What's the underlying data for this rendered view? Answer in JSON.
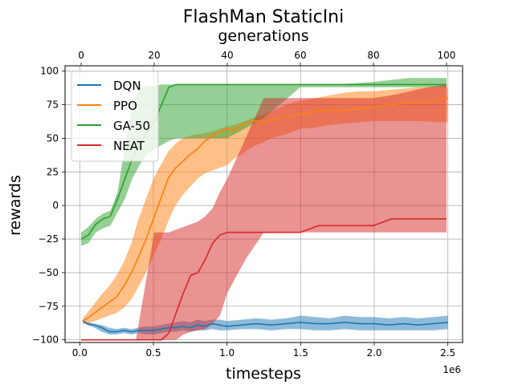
{
  "chart_data": {
    "type": "line",
    "title": "FlashMan StaticIni",
    "xlabel": "timesteps",
    "ylabel": "rewards",
    "x_top_label": "generations",
    "x_offset_label": "1e6",
    "xlim": [
      -0.1,
      2.6
    ],
    "ylim": [
      -102,
      104
    ],
    "x_top_lim": [
      -4.4,
      104.4
    ],
    "x_ticks": [
      0.0,
      0.5,
      1.0,
      1.5,
      2.0,
      2.5
    ],
    "x_tick_labels": [
      "0.0",
      "0.5",
      "1.0",
      "1.5",
      "2.0",
      "2.5"
    ],
    "x_top_ticks": [
      0,
      20,
      40,
      60,
      80,
      100
    ],
    "x_top_tick_labels": [
      "0",
      "20",
      "40",
      "60",
      "80",
      "100"
    ],
    "y_ticks": [
      -100,
      -75,
      -50,
      -25,
      0,
      25,
      50,
      75,
      100
    ],
    "y_tick_labels": [
      "−100",
      "−75",
      "−50",
      "−25",
      "0",
      "25",
      "50",
      "75",
      "100"
    ],
    "grid": true,
    "legend_position": "top-left",
    "series": [
      {
        "name": "DQN",
        "color": "#1f77b4",
        "band_alpha": 0.5,
        "axis": "bottom",
        "x": [
          0.02,
          0.05,
          0.1,
          0.15,
          0.2,
          0.25,
          0.3,
          0.35,
          0.4,
          0.45,
          0.5,
          0.55,
          0.6,
          0.65,
          0.7,
          0.75,
          0.8,
          0.85,
          0.9,
          0.95,
          1.0,
          1.1,
          1.2,
          1.3,
          1.4,
          1.5,
          1.6,
          1.7,
          1.8,
          1.9,
          2.0,
          2.1,
          2.2,
          2.3,
          2.4,
          2.5
        ],
        "y": [
          -86,
          -88,
          -89,
          -91,
          -94,
          -94,
          -93,
          -94,
          -93,
          -93,
          -93,
          -92,
          -91,
          -91,
          -90,
          -91,
          -89,
          -90,
          -88,
          -89,
          -90,
          -89,
          -88,
          -89,
          -88,
          -87,
          -88,
          -88,
          -87,
          -88,
          -88,
          -89,
          -88,
          -89,
          -88,
          -87
        ],
        "lower": [
          -87,
          -89,
          -91,
          -94,
          -96,
          -96,
          -95,
          -96,
          -95,
          -96,
          -96,
          -95,
          -94,
          -94,
          -93,
          -94,
          -93,
          -93,
          -92,
          -93,
          -93,
          -92,
          -92,
          -93,
          -92,
          -92,
          -93,
          -93,
          -92,
          -93,
          -93,
          -93,
          -93,
          -93,
          -93,
          -92
        ],
        "upper": [
          -85,
          -87,
          -88,
          -89,
          -91,
          -92,
          -91,
          -92,
          -91,
          -90,
          -90,
          -89,
          -88,
          -87,
          -86,
          -87,
          -85,
          -86,
          -85,
          -85,
          -86,
          -85,
          -84,
          -85,
          -84,
          -82,
          -83,
          -84,
          -82,
          -83,
          -83,
          -84,
          -83,
          -84,
          -83,
          -82
        ]
      },
      {
        "name": "PPO",
        "color": "#ff7f0e",
        "band_alpha": 0.5,
        "axis": "bottom",
        "x": [
          0.02,
          0.05,
          0.1,
          0.15,
          0.2,
          0.25,
          0.3,
          0.35,
          0.4,
          0.45,
          0.5,
          0.55,
          0.6,
          0.65,
          0.7,
          0.75,
          0.8,
          0.85,
          0.9,
          0.95,
          1.0,
          1.05,
          1.1,
          1.15,
          1.2,
          1.25,
          1.3,
          1.4,
          1.5,
          1.6,
          1.7,
          1.8,
          1.9,
          2.0,
          2.1,
          2.2,
          2.3,
          2.4,
          2.5
        ],
        "y": [
          -86,
          -84,
          -80,
          -76,
          -72,
          -68,
          -60,
          -50,
          -38,
          -25,
          -10,
          5,
          20,
          28,
          33,
          38,
          42,
          48,
          52,
          55,
          57,
          56,
          60,
          62,
          63,
          62,
          64,
          66,
          68,
          70,
          71,
          71,
          72,
          73,
          75,
          76,
          77,
          78,
          80
        ],
        "lower": [
          -88,
          -88,
          -86,
          -84,
          -82,
          -80,
          -76,
          -70,
          -60,
          -50,
          -38,
          -26,
          -12,
          0,
          8,
          14,
          20,
          24,
          26,
          28,
          30,
          35,
          38,
          42,
          45,
          47,
          50,
          53,
          57,
          58,
          60,
          61,
          62,
          63,
          63,
          63,
          63,
          62,
          62
        ],
        "upper": [
          -84,
          -80,
          -73,
          -66,
          -60,
          -52,
          -42,
          -28,
          -10,
          5,
          20,
          30,
          40,
          46,
          50,
          52,
          53,
          54,
          55,
          57,
          59,
          60,
          62,
          64,
          66,
          68,
          70,
          75,
          78,
          80,
          82,
          84,
          85,
          85,
          86,
          87,
          88,
          88,
          88
        ]
      },
      {
        "name": "GA-50",
        "color": "#2ca02c",
        "band_alpha": 0.5,
        "axis": "top",
        "x": [
          0,
          2,
          4,
          6,
          8,
          10,
          12,
          14,
          16,
          18,
          20,
          22,
          24,
          26,
          28,
          30,
          40,
          50,
          60,
          70,
          80,
          90,
          100
        ],
        "y": [
          -25,
          -22,
          -14,
          -10,
          -8,
          5,
          20,
          35,
          45,
          55,
          62,
          75,
          88,
          90,
          90,
          90,
          90,
          90,
          90,
          90,
          90,
          90,
          90
        ],
        "lower": [
          -30,
          -28,
          -20,
          -17,
          -15,
          -5,
          5,
          20,
          30,
          38,
          42,
          45,
          48,
          50,
          50,
          50,
          50,
          65,
          88,
          88,
          88,
          88,
          88
        ],
        "upper": [
          -20,
          -16,
          -10,
          -6,
          -4,
          10,
          45,
          75,
          88,
          89,
          89,
          90,
          90,
          90,
          90,
          90,
          90,
          90,
          90,
          90,
          92,
          95,
          95
        ]
      },
      {
        "name": "NEAT",
        "color": "#d62728",
        "band_alpha": 0.5,
        "axis": "top",
        "x": [
          0,
          5,
          10,
          15,
          20,
          22,
          24,
          26,
          28,
          30,
          32,
          34,
          36,
          38,
          40,
          45,
          50,
          55,
          60,
          65,
          70,
          75,
          80,
          85,
          90,
          95,
          100
        ],
        "y": [
          -100,
          -100,
          -100,
          -100,
          -100,
          -100,
          -95,
          -80,
          -65,
          -52,
          -50,
          -40,
          -28,
          -22,
          -20,
          -20,
          -20,
          -20,
          -20,
          -15,
          -15,
          -15,
          -15,
          -10,
          -10,
          -10,
          -10
        ],
        "lower": [
          -100,
          -100,
          -100,
          -100,
          -100,
          -100,
          -100,
          -100,
          -96,
          -94,
          -93,
          -92,
          -88,
          -82,
          -65,
          -40,
          -20,
          -20,
          -20,
          -20,
          -20,
          -20,
          -20,
          -20,
          -20,
          -20,
          -20
        ],
        "upper": [
          -100,
          -100,
          -100,
          -100,
          -20,
          -20,
          -20,
          -18,
          -16,
          -14,
          -12,
          -8,
          -2,
          10,
          20,
          50,
          80,
          80,
          80,
          80,
          80,
          80,
          80,
          82,
          85,
          88,
          90
        ]
      }
    ]
  }
}
